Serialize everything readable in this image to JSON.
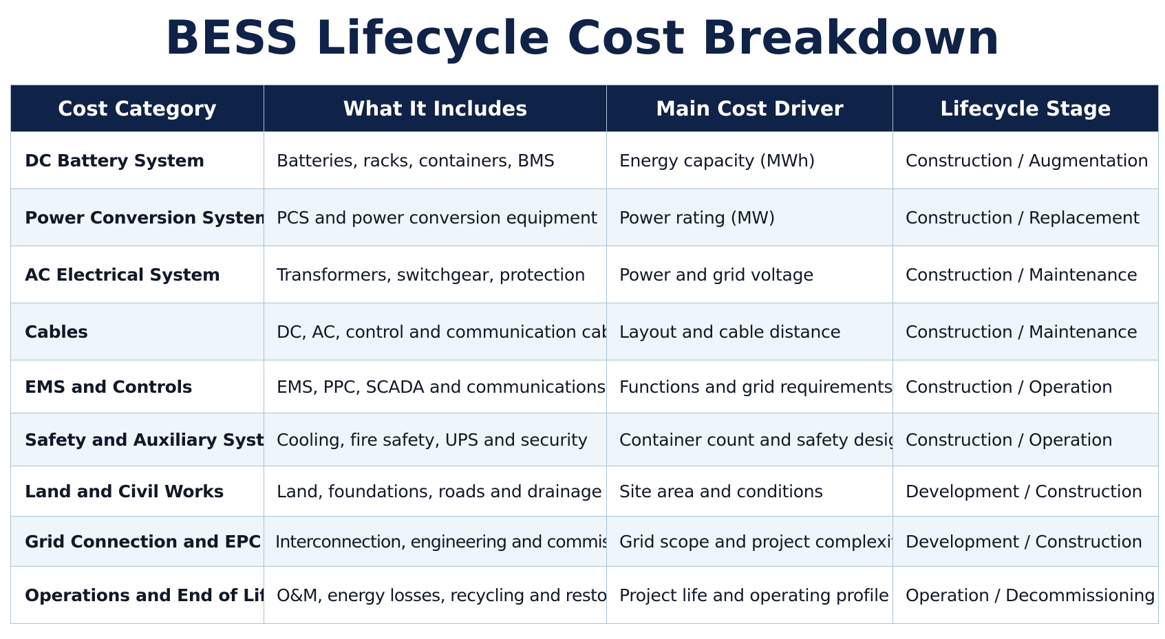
{
  "title": "BESS Lifecycle Cost Breakdown",
  "table": {
    "headers": [
      "Cost Category",
      "What It Includes",
      "Main Cost Driver",
      "Lifecycle Stage"
    ],
    "rows": [
      [
        "DC Battery System",
        "Batteries, racks, containers, BMS",
        "Energy capacity (MWh)",
        "Construction / Augmentation"
      ],
      [
        "Power Conversion System",
        "PCS and power conversion equipment",
        "Power rating (MW)",
        "Construction / Replacement"
      ],
      [
        "AC Electrical System",
        "Transformers, switchgear, protection",
        "Power and grid voltage",
        "Construction / Maintenance"
      ],
      [
        "Cables",
        "DC, AC, control and communication cables",
        "Layout and cable distance",
        "Construction / Maintenance"
      ],
      [
        "EMS and Controls",
        "EMS, PPC, SCADA and communications",
        "Functions and grid requirements",
        "Construction / Operation"
      ],
      [
        "Safety and Auxiliary Systems",
        "Cooling, fire safety, UPS and security",
        "Container count and safety design",
        "Construction / Operation"
      ],
      [
        "Land and Civil Works",
        "Land, foundations, roads and drainage",
        "Site area and conditions",
        "Development / Construction"
      ],
      [
        "Grid Connection and EPC",
        "Interconnection, engineering and commissioning",
        "Grid scope and project complexity",
        "Development / Construction"
      ],
      [
        "Operations and End of Life",
        "O&M, energy losses, recycling and restoration",
        "Project life and operating profile",
        "Operation / Decommissioning"
      ]
    ]
  }
}
